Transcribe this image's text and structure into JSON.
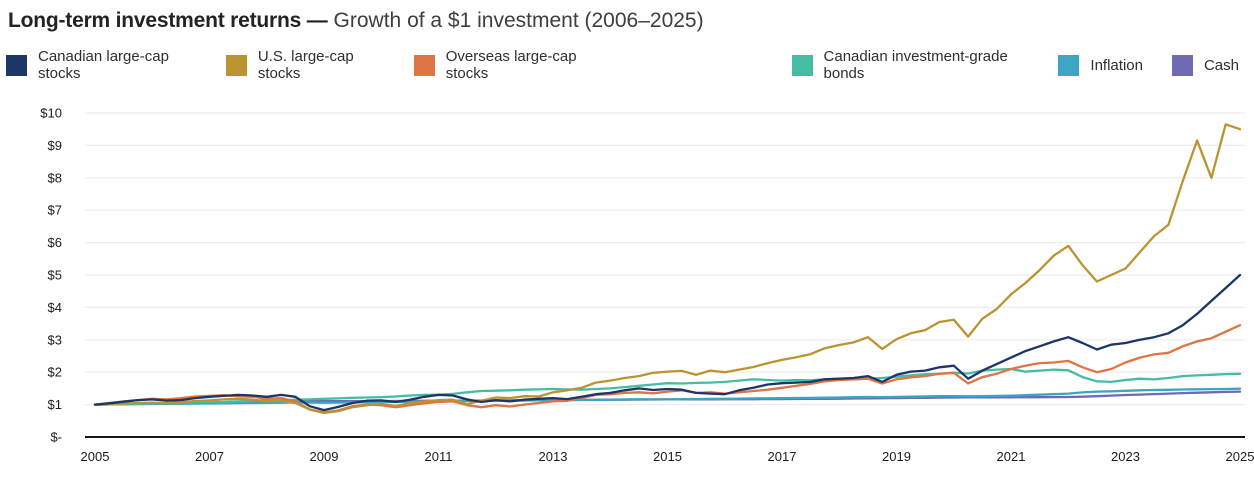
{
  "title": {
    "bold": "Long-term investment returns —",
    "regular": "Growth of a $1 investment (2006–2025)"
  },
  "legend": [
    {
      "label": "Canadian large-cap stocks",
      "color": "#1b3667"
    },
    {
      "label": "U.S. large-cap stocks",
      "color": "#bb9330"
    },
    {
      "label": "Overseas large-cap stocks",
      "color": "#dd7544"
    },
    {
      "label": "Canadian investment-grade bonds",
      "color": "#45bda4"
    },
    {
      "label": "Inflation",
      "color": "#3da5c4"
    },
    {
      "label": "Cash",
      "color": "#7069b3"
    }
  ],
  "chart_data": {
    "type": "line",
    "title": "Long-term investment returns — Growth of a $1 investment (2006–2025)",
    "xlabel": "",
    "ylabel": "",
    "xlim": [
      2005,
      2025
    ],
    "ylim": [
      0,
      10
    ],
    "grid": "horizontal",
    "grid_color": "#ededf1",
    "axis_color": "#141414",
    "x_start": 2005,
    "x_step": 0.25,
    "x_tick_years": [
      2005,
      2007,
      2009,
      2011,
      2013,
      2015,
      2017,
      2019,
      2021,
      2023,
      2025
    ],
    "y_tick_labels": [
      "$-",
      "$1",
      "$2",
      "$3",
      "$4",
      "$5",
      "$6",
      "$7",
      "$8",
      "$9",
      "$10"
    ],
    "legend_position": "top",
    "series": [
      {
        "name": "Canadian large-cap stocks",
        "color": "#1b3667",
        "values": [
          1.0,
          1.04,
          1.09,
          1.14,
          1.16,
          1.12,
          1.14,
          1.2,
          1.24,
          1.27,
          1.3,
          1.28,
          1.24,
          1.3,
          1.24,
          0.95,
          0.83,
          0.93,
          1.05,
          1.12,
          1.13,
          1.08,
          1.15,
          1.24,
          1.3,
          1.28,
          1.16,
          1.08,
          1.14,
          1.1,
          1.15,
          1.18,
          1.2,
          1.17,
          1.24,
          1.32,
          1.36,
          1.44,
          1.5,
          1.45,
          1.48,
          1.46,
          1.36,
          1.34,
          1.32,
          1.44,
          1.52,
          1.62,
          1.66,
          1.68,
          1.7,
          1.78,
          1.8,
          1.82,
          1.88,
          1.7,
          1.92,
          2.02,
          2.05,
          2.15,
          2.2,
          1.8,
          2.05,
          2.25,
          2.45,
          2.65,
          2.8,
          2.95,
          3.08,
          2.9,
          2.7,
          2.85,
          2.9,
          3.0,
          3.08,
          3.2,
          3.45,
          3.8,
          4.2,
          4.6,
          5.0
        ]
      },
      {
        "name": "U.S. large-cap stocks",
        "color": "#bb9330",
        "values": [
          1.0,
          1.01,
          1.03,
          1.05,
          1.06,
          1.04,
          1.07,
          1.11,
          1.13,
          1.16,
          1.18,
          1.15,
          1.1,
          1.12,
          1.05,
          0.85,
          0.74,
          0.8,
          0.92,
          0.98,
          1.02,
          0.96,
          1.04,
          1.1,
          1.14,
          1.15,
          1.02,
          1.12,
          1.22,
          1.2,
          1.26,
          1.25,
          1.38,
          1.44,
          1.52,
          1.68,
          1.74,
          1.82,
          1.88,
          1.98,
          2.02,
          2.04,
          1.92,
          2.05,
          2.0,
          2.08,
          2.16,
          2.28,
          2.38,
          2.46,
          2.56,
          2.74,
          2.84,
          2.92,
          3.08,
          2.72,
          3.02,
          3.2,
          3.3,
          3.55,
          3.62,
          3.1,
          3.65,
          3.95,
          4.4,
          4.75,
          5.15,
          5.6,
          5.9,
          5.3,
          4.8,
          5.0,
          5.2,
          5.7,
          6.2,
          6.55,
          7.9,
          9.15,
          8.0,
          9.65,
          9.5
        ]
      },
      {
        "name": "Overseas large-cap stocks",
        "color": "#dd7544",
        "values": [
          1.0,
          1.05,
          1.1,
          1.14,
          1.18,
          1.16,
          1.2,
          1.25,
          1.27,
          1.29,
          1.26,
          1.24,
          1.18,
          1.2,
          1.1,
          0.85,
          0.76,
          0.82,
          0.95,
          1.0,
          0.98,
          0.92,
          0.98,
          1.04,
          1.08,
          1.1,
          0.98,
          0.92,
          0.98,
          0.94,
          1.0,
          1.05,
          1.1,
          1.12,
          1.2,
          1.3,
          1.32,
          1.36,
          1.38,
          1.35,
          1.4,
          1.44,
          1.36,
          1.38,
          1.34,
          1.38,
          1.42,
          1.46,
          1.52,
          1.58,
          1.64,
          1.72,
          1.76,
          1.78,
          1.8,
          1.65,
          1.78,
          1.84,
          1.88,
          1.95,
          1.98,
          1.65,
          1.85,
          1.95,
          2.1,
          2.2,
          2.28,
          2.3,
          2.35,
          2.15,
          2.0,
          2.1,
          2.3,
          2.45,
          2.55,
          2.6,
          2.8,
          2.95,
          3.05,
          3.25,
          3.45
        ]
      },
      {
        "name": "Canadian investment-grade bonds",
        "color": "#45bda4",
        "values": [
          1.0,
          1.01,
          1.02,
          1.03,
          1.04,
          1.04,
          1.06,
          1.07,
          1.08,
          1.08,
          1.1,
          1.12,
          1.14,
          1.13,
          1.15,
          1.16,
          1.18,
          1.19,
          1.21,
          1.22,
          1.23,
          1.25,
          1.28,
          1.3,
          1.31,
          1.33,
          1.38,
          1.42,
          1.43,
          1.44,
          1.46,
          1.47,
          1.48,
          1.47,
          1.46,
          1.48,
          1.5,
          1.54,
          1.58,
          1.62,
          1.66,
          1.65,
          1.67,
          1.68,
          1.7,
          1.74,
          1.78,
          1.76,
          1.74,
          1.76,
          1.75,
          1.78,
          1.79,
          1.78,
          1.8,
          1.82,
          1.86,
          1.9,
          1.94,
          1.95,
          1.98,
          1.96,
          2.05,
          2.08,
          2.1,
          2.02,
          2.05,
          2.08,
          2.06,
          1.85,
          1.72,
          1.7,
          1.76,
          1.8,
          1.78,
          1.82,
          1.88,
          1.9,
          1.92,
          1.94,
          1.95
        ]
      },
      {
        "name": "Inflation",
        "color": "#3da5c4",
        "values": [
          1.0,
          1.005,
          1.01,
          1.015,
          1.02,
          1.025,
          1.028,
          1.03,
          1.035,
          1.04,
          1.045,
          1.048,
          1.055,
          1.06,
          1.07,
          1.062,
          1.058,
          1.062,
          1.068,
          1.072,
          1.078,
          1.08,
          1.085,
          1.092,
          1.1,
          1.11,
          1.115,
          1.118,
          1.12,
          1.125,
          1.128,
          1.13,
          1.132,
          1.138,
          1.142,
          1.145,
          1.15,
          1.16,
          1.165,
          1.162,
          1.16,
          1.168,
          1.172,
          1.175,
          1.18,
          1.185,
          1.19,
          1.195,
          1.2,
          1.205,
          1.208,
          1.212,
          1.218,
          1.228,
          1.235,
          1.232,
          1.238,
          1.248,
          1.252,
          1.258,
          1.262,
          1.255,
          1.262,
          1.268,
          1.275,
          1.29,
          1.305,
          1.32,
          1.34,
          1.375,
          1.4,
          1.41,
          1.425,
          1.44,
          1.45,
          1.458,
          1.465,
          1.472,
          1.478,
          1.482,
          1.49
        ]
      },
      {
        "name": "Cash",
        "color": "#7069b3",
        "values": [
          1.0,
          1.007,
          1.014,
          1.021,
          1.028,
          1.036,
          1.044,
          1.052,
          1.06,
          1.068,
          1.076,
          1.084,
          1.09,
          1.096,
          1.1,
          1.104,
          1.106,
          1.107,
          1.108,
          1.109,
          1.11,
          1.112,
          1.114,
          1.117,
          1.12,
          1.122,
          1.125,
          1.127,
          1.13,
          1.132,
          1.135,
          1.137,
          1.14,
          1.142,
          1.145,
          1.147,
          1.15,
          1.152,
          1.155,
          1.157,
          1.16,
          1.162,
          1.163,
          1.164,
          1.166,
          1.167,
          1.168,
          1.17,
          1.171,
          1.173,
          1.176,
          1.179,
          1.183,
          1.187,
          1.191,
          1.196,
          1.201,
          1.206,
          1.211,
          1.216,
          1.22,
          1.223,
          1.224,
          1.225,
          1.226,
          1.227,
          1.228,
          1.23,
          1.235,
          1.245,
          1.26,
          1.278,
          1.295,
          1.31,
          1.325,
          1.34,
          1.355,
          1.368,
          1.38,
          1.392,
          1.4
        ]
      }
    ]
  }
}
